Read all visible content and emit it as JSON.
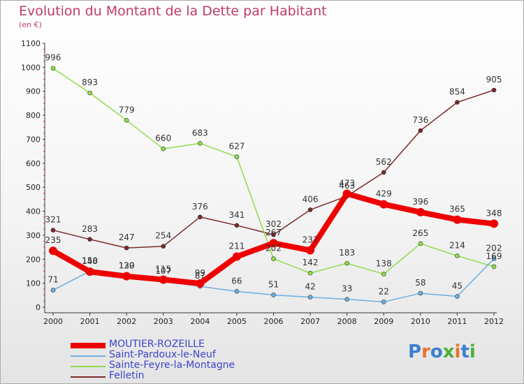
{
  "title": "Evolution du Montant de la Dette par Habitant",
  "subtitle": "(en €)",
  "logo": {
    "text": "Proxiti",
    "letter_colors": [
      "#3a7fd0",
      "#e8732a",
      "#3a7fd0",
      "#4fae3a",
      "#e8732a",
      "#3a7fd0",
      "#4fae3a"
    ]
  },
  "colors": {
    "title": "#c0396b",
    "axis": "#333333",
    "tick_label": "#222222",
    "legend_text": "#3a45c8"
  },
  "chart_data": {
    "type": "line",
    "title": "Evolution du Montant de la Dette par Habitant",
    "subtitle": "(en €)",
    "xlabel": "",
    "ylabel": "",
    "x": [
      "2000",
      "2001",
      "2002",
      "2003",
      "2004",
      "2005",
      "2006",
      "2007",
      "2008",
      "2009",
      "2010",
      "2011",
      "2012"
    ],
    "ylim": [
      0,
      1100
    ],
    "yticks": [
      0,
      100,
      200,
      300,
      400,
      500,
      600,
      700,
      800,
      900,
      1000,
      1100
    ],
    "ytick_labels": [
      "0",
      "100",
      "200",
      "300",
      "400",
      "500",
      "600",
      "700",
      "800",
      "900",
      "1000",
      "1100"
    ],
    "grid": false,
    "legend_position": "bottom-left",
    "series": [
      {
        "name": "MOUTIER-ROZEILLE",
        "color": "#ee0000",
        "line_width": 8,
        "marker_radius": 6,
        "values": [
          235,
          148,
          129,
          115,
          99,
          211,
          267,
          237,
          473,
          429,
          396,
          365,
          348
        ],
        "labels": [
          "235",
          "148",
          "129",
          "115",
          "99",
          "211",
          "267",
          "237",
          "473",
          "429",
          "396",
          "365",
          "348"
        ]
      },
      {
        "name": "Saint-Pardoux-le-Neuf",
        "color": "#6aaee0",
        "line_width": 1.5,
        "marker_radius": 3,
        "values": [
          71,
          150,
          130,
          107,
          87,
          66,
          51,
          42,
          33,
          22,
          58,
          45,
          202
        ],
        "labels": [
          "71",
          "150",
          "130",
          "107",
          "87",
          "66",
          "51",
          "42",
          "33",
          "22",
          "58",
          "45",
          "202"
        ]
      },
      {
        "name": "Sainte-Feyre-la-Montagne",
        "color": "#8fdc4a",
        "line_width": 1.5,
        "marker_radius": 3,
        "values": [
          996,
          893,
          779,
          660,
          683,
          627,
          202,
          142,
          183,
          138,
          265,
          214,
          169
        ],
        "labels": [
          "996",
          "893",
          "779",
          "660",
          "683",
          "627",
          "202",
          "142",
          "183",
          "138",
          "265",
          "214",
          "169"
        ]
      },
      {
        "name": "Felletin",
        "color": "#7a2a2a",
        "line_width": 1.5,
        "marker_radius": 3,
        "values": [
          321,
          283,
          247,
          254,
          376,
          341,
          302,
          406,
          463,
          562,
          736,
          854,
          905
        ],
        "labels": [
          "321",
          "283",
          "247",
          "254",
          "376",
          "341",
          "302",
          "406",
          "463",
          "562",
          "736",
          "854",
          "905"
        ]
      }
    ]
  }
}
